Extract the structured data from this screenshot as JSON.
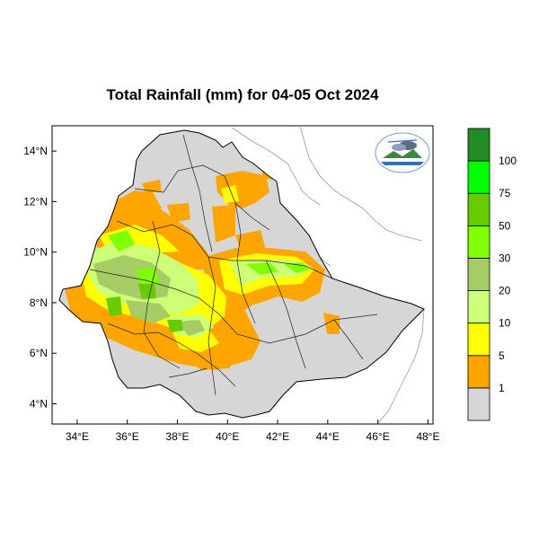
{
  "map": {
    "title": "Total Rainfall (mm) for 04-05 Oct 2024",
    "lat_labels": [
      "14°N",
      "12°N",
      "10°N",
      "8°N",
      "6°N",
      "4°N"
    ],
    "lon_labels": [
      "34°E",
      "36°E",
      "38°E",
      "40°E",
      "42°E",
      "44°E",
      "46°E",
      "48°E"
    ],
    "lat_range": [
      3.2,
      15.0
    ],
    "lon_range": [
      33.0,
      48.2
    ]
  },
  "legend": {
    "unit": "mm",
    "bins": [
      {
        "label": "1",
        "color": "#d6d6d6"
      },
      {
        "label": "5",
        "color": "#ffa500"
      },
      {
        "label": "10",
        "color": "#ffff00"
      },
      {
        "label": "20",
        "color": "#ccff77"
      },
      {
        "label": "30",
        "color": "#a6cc66"
      },
      {
        "label": "50",
        "color": "#80ff00"
      },
      {
        "label": "75",
        "color": "#66cc00"
      },
      {
        "label": "100",
        "color": "#00ff00"
      },
      {
        "label": "",
        "color": "#228b22"
      }
    ]
  },
  "logo": {
    "name": "ethiopia-meteorology-logo"
  }
}
